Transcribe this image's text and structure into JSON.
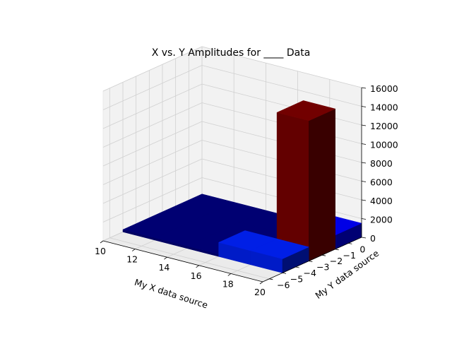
{
  "chart_data": {
    "type": "bar3d",
    "title": "X vs. Y Amplitudes for ____ Data",
    "xlabel": "My X data source",
    "ylabel": "My Y data source",
    "zlabel": "",
    "xlim": [
      10,
      20
    ],
    "ylim": [
      -6.5,
      1
    ],
    "zlim": [
      0,
      16000
    ],
    "x_ticks": [
      10,
      12,
      14,
      16,
      18,
      20
    ],
    "y_ticks": [
      -6,
      -5,
      -4,
      -3,
      -2,
      -1,
      0
    ],
    "z_ticks": [
      0,
      2000,
      4000,
      6000,
      8000,
      10000,
      12000,
      14000,
      16000
    ],
    "y_tick_labels": [
      "−6",
      "−5",
      "−4",
      "−3",
      "−2",
      "−1",
      "0"
    ],
    "grid": true,
    "bars": [
      {
        "x0": 10,
        "x1": 12,
        "y0": -5,
        "y1": -3,
        "z": 250,
        "color": "#00007f"
      },
      {
        "x0": 12,
        "x1": 14,
        "y0": -5,
        "y1": -3,
        "z": 250,
        "color": "#00007f"
      },
      {
        "x0": 14,
        "x1": 16,
        "y0": -5,
        "y1": -3,
        "z": 250,
        "color": "#00007f"
      },
      {
        "x0": 10,
        "x1": 12,
        "y0": -3,
        "y1": -1,
        "z": 250,
        "color": "#00007f"
      },
      {
        "x0": 12,
        "x1": 14,
        "y0": -3,
        "y1": -1,
        "z": 250,
        "color": "#00007f"
      },
      {
        "x0": 14,
        "x1": 16,
        "y0": -3,
        "y1": -1,
        "z": 250,
        "color": "#00007f"
      },
      {
        "x0": 16,
        "x1": 18,
        "y0": -3,
        "y1": -1,
        "z": 250,
        "color": "#00007f"
      },
      {
        "x0": 10,
        "x1": 12,
        "y0": -1,
        "y1": 1,
        "z": 250,
        "color": "#00007f"
      },
      {
        "x0": 12,
        "x1": 14,
        "y0": -1,
        "y1": 1,
        "z": 250,
        "color": "#00007f"
      },
      {
        "x0": 14,
        "x1": 16,
        "y0": -1,
        "y1": 1,
        "z": 250,
        "color": "#00007f"
      },
      {
        "x0": 16,
        "x1": 18,
        "y0": -1,
        "y1": 1,
        "z": 250,
        "color": "#00007f"
      },
      {
        "x0": 18,
        "x1": 20,
        "y0": -1,
        "y1": 1,
        "z": 1500,
        "color": "#0000ff"
      },
      {
        "x0": 18,
        "x1": 20,
        "y0": -3,
        "y1": -1,
        "z": 1500,
        "color": "#0000ff"
      },
      {
        "x0": 16,
        "x1": 18,
        "y0": -5,
        "y1": -3,
        "z": 1500,
        "color": "#0022ff"
      },
      {
        "x0": 18,
        "x1": 20,
        "y0": -5,
        "y1": -3,
        "z": 1500,
        "color": "#0022ff"
      },
      {
        "x0": 18,
        "x1": 20,
        "y0": -3,
        "y1": -1,
        "z": 15000,
        "color": "#7f0000"
      }
    ]
  }
}
